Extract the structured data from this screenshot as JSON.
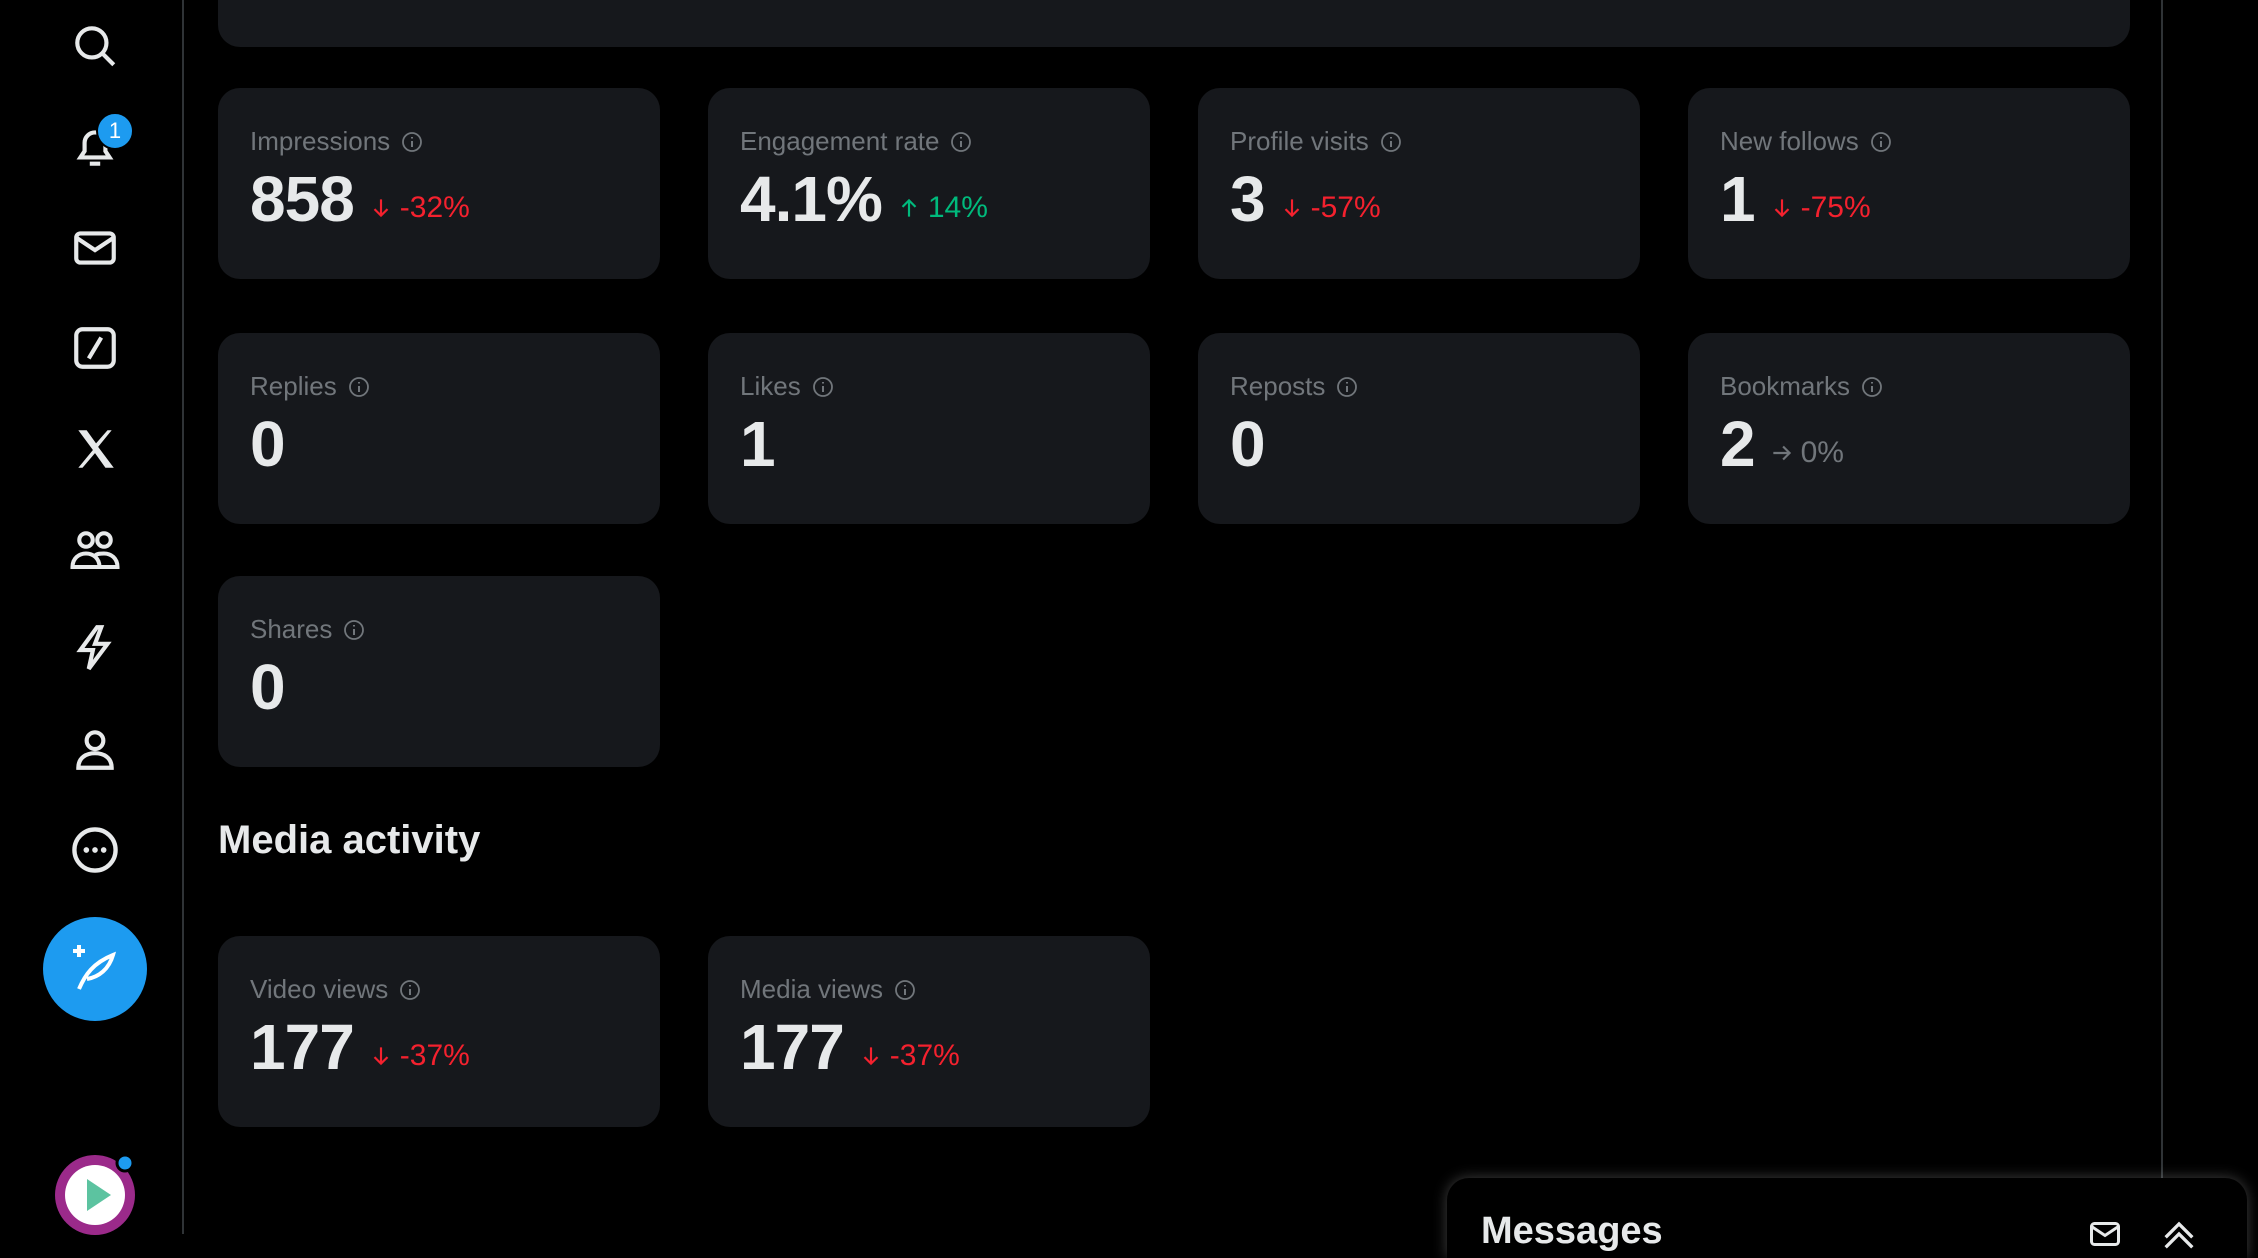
{
  "notifications_badge": "1",
  "overview_cards": [
    {
      "label": "Impressions",
      "value": "858",
      "change": "-32%",
      "trend": "down"
    },
    {
      "label": "Engagement rate",
      "value": "4.1%",
      "change": "14%",
      "trend": "up"
    },
    {
      "label": "Profile visits",
      "value": "3",
      "change": "-57%",
      "trend": "down"
    },
    {
      "label": "New follows",
      "value": "1",
      "change": "-75%",
      "trend": "down"
    },
    {
      "label": "Replies",
      "value": "0"
    },
    {
      "label": "Likes",
      "value": "1"
    },
    {
      "label": "Reposts",
      "value": "0"
    },
    {
      "label": "Bookmarks",
      "value": "2",
      "change": "0%",
      "trend": "flat"
    },
    {
      "label": "Shares",
      "value": "0"
    }
  ],
  "media_activity": {
    "title": "Media activity",
    "cards": [
      {
        "label": "Video views",
        "value": "177",
        "change": "-37%",
        "trend": "down"
      },
      {
        "label": "Media views",
        "value": "177",
        "change": "-37%",
        "trend": "down"
      }
    ]
  },
  "messages_panel": {
    "title": "Messages"
  }
}
